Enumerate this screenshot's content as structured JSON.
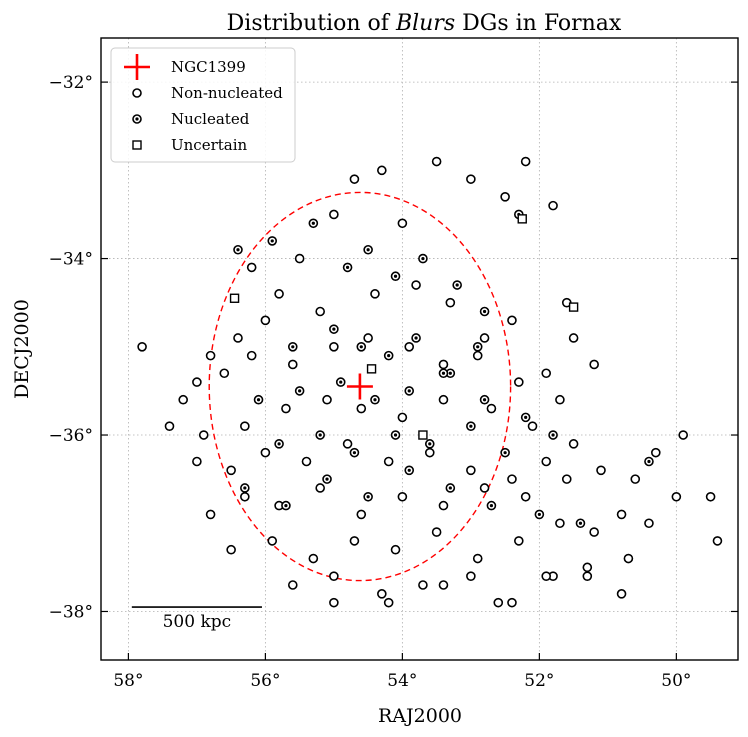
{
  "chart_data": {
    "type": "scatter",
    "title": "Distribution of Blurs DGs in Fornax",
    "title_parts": [
      "Distribution of ",
      "Blurs",
      " DGs in Fornax"
    ],
    "xlabel": "RAJ2000",
    "ylabel": "DECJ2000",
    "x_ticks": [
      "58°",
      "56°",
      "54°",
      "52°",
      "50°"
    ],
    "y_ticks": [
      "−32°",
      "−34°",
      "−36°",
      "−38°"
    ],
    "x_tick_values": [
      58,
      56,
      54,
      52,
      50
    ],
    "y_tick_values": [
      -32,
      -34,
      -36,
      -38
    ],
    "xlim": [
      58.4,
      49.1
    ],
    "ylim": [
      -38.55,
      -31.5
    ],
    "grid": true,
    "legend_position": "top-left",
    "legend": [
      {
        "label": "NGC1399",
        "marker": "plus",
        "color": "#ff0000"
      },
      {
        "label": "Non-nucleated",
        "marker": "open-circle",
        "color": "#000000"
      },
      {
        "label": "Nucleated",
        "marker": "dotted-circle",
        "color": "#000000"
      },
      {
        "label": "Uncertain",
        "marker": "open-square",
        "color": "#000000"
      }
    ],
    "center": {
      "name": "NGC1399",
      "x": 54.62,
      "y": -35.45
    },
    "virial_circle": {
      "center_x": 54.62,
      "center_y": -35.45,
      "radius_deg": 2.2,
      "color": "#ff0000",
      "style": "dashed"
    },
    "scale_bar": {
      "label": "500 kpc",
      "x_start": 57.95,
      "x_end": 56.05,
      "y": -37.95
    },
    "series": [
      {
        "name": "Non-nucleated",
        "x": [
          57.8,
          57.0,
          56.8,
          56.4,
          56.2,
          55.5,
          55.0,
          54.7,
          54.3,
          54.0,
          53.5,
          53.0,
          52.5,
          52.2,
          51.8,
          51.6,
          51.5,
          51.2,
          56.0,
          55.8,
          55.2,
          54.4,
          53.8,
          53.3,
          52.8,
          52.4,
          51.9,
          57.2,
          56.6,
          56.2,
          55.6,
          55.0,
          54.5,
          53.9,
          53.4,
          52.9,
          52.3,
          51.7,
          57.4,
          56.9,
          56.3,
          55.7,
          55.1,
          54.6,
          54.0,
          53.4,
          52.7,
          52.1,
          51.5,
          57.0,
          56.5,
          56.0,
          55.4,
          54.8,
          54.2,
          53.6,
          53.0,
          52.4,
          51.9,
          56.8,
          56.3,
          55.8,
          55.2,
          54.6,
          54.0,
          53.4,
          52.8,
          52.2,
          51.6,
          51.1,
          50.6,
          50.3,
          49.9,
          49.5,
          56.5,
          55.9,
          55.3,
          54.7,
          54.1,
          53.5,
          52.9,
          52.3,
          51.7,
          51.2,
          50.8,
          50.4,
          50.0,
          49.4,
          55.6,
          55.0,
          54.3,
          53.7,
          53.0,
          52.4,
          51.8,
          51.3,
          50.8,
          55.0,
          54.2,
          53.4,
          52.6,
          51.9,
          51.3,
          50.7
        ],
        "y": [
          -35.0,
          -35.4,
          -35.1,
          -34.9,
          -34.1,
          -34.0,
          -33.5,
          -33.1,
          -33.0,
          -33.6,
          -32.9,
          -33.1,
          -33.3,
          -32.9,
          -33.4,
          -34.5,
          -34.9,
          -35.2,
          -34.7,
          -34.4,
          -34.6,
          -34.4,
          -34.3,
          -34.5,
          -34.9,
          -34.7,
          -35.3,
          -35.6,
          -35.3,
          -35.1,
          -35.2,
          -35.0,
          -34.9,
          -35.0,
          -35.2,
          -35.1,
          -35.4,
          -35.6,
          -35.9,
          -36.0,
          -35.9,
          -35.7,
          -35.6,
          -35.7,
          -35.8,
          -35.6,
          -35.7,
          -35.9,
          -36.1,
          -36.3,
          -36.4,
          -36.2,
          -36.3,
          -36.1,
          -36.3,
          -36.2,
          -36.4,
          -36.5,
          -36.3,
          -36.9,
          -36.7,
          -36.8,
          -36.6,
          -36.9,
          -36.7,
          -36.8,
          -36.6,
          -36.7,
          -36.5,
          -36.4,
          -36.5,
          -36.2,
          -36.0,
          -36.7,
          -37.3,
          -37.2,
          -37.4,
          -37.2,
          -37.3,
          -37.1,
          -37.4,
          -37.2,
          -37.0,
          -37.1,
          -36.9,
          -37.0,
          -36.7,
          -37.2,
          -37.7,
          -37.6,
          -37.8,
          -37.7,
          -37.6,
          -37.9,
          -37.6,
          -37.5,
          -37.8,
          -37.9,
          -37.9,
          -37.7,
          -37.9,
          -37.6,
          -37.6,
          -37.4
        ]
      },
      {
        "name": "Nucleated",
        "x": [
          56.4,
          55.9,
          55.3,
          54.8,
          54.5,
          54.1,
          53.7,
          53.2,
          52.8,
          52.3,
          55.6,
          55.0,
          54.6,
          54.2,
          53.8,
          53.3,
          52.9,
          56.1,
          55.5,
          54.9,
          54.4,
          53.9,
          53.4,
          52.8,
          52.2,
          55.8,
          55.2,
          54.7,
          54.1,
          53.6,
          53.0,
          52.5,
          51.8,
          56.3,
          55.7,
          55.1,
          54.5,
          53.9,
          53.3,
          52.7,
          52.0,
          51.4,
          50.4
        ],
        "y": [
          -33.9,
          -33.8,
          -33.6,
          -34.1,
          -33.9,
          -34.2,
          -34.0,
          -34.3,
          -34.6,
          -33.5,
          -35.0,
          -34.8,
          -35.0,
          -35.1,
          -34.9,
          -35.3,
          -35.0,
          -35.6,
          -35.5,
          -35.4,
          -35.6,
          -35.5,
          -35.3,
          -35.6,
          -35.8,
          -36.1,
          -36.0,
          -36.2,
          -36.0,
          -36.1,
          -35.9,
          -36.2,
          -36.0,
          -36.6,
          -36.8,
          -36.5,
          -36.7,
          -36.4,
          -36.6,
          -36.8,
          -36.9,
          -37.0,
          -36.3
        ]
      },
      {
        "name": "Uncertain",
        "x": [
          56.45,
          54.45,
          53.7,
          52.25,
          51.5
        ],
        "y": [
          -34.45,
          -35.25,
          -36.0,
          -33.55,
          -34.55
        ]
      }
    ]
  }
}
